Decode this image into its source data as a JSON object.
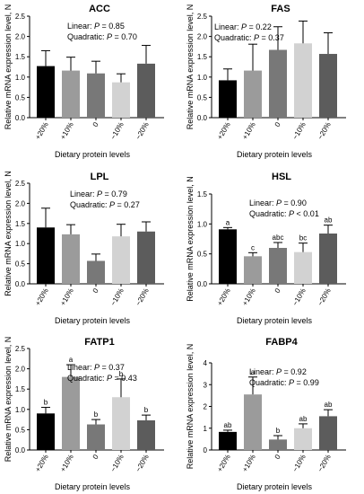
{
  "chart_data": [
    {
      "type": "bar",
      "title": "ACC",
      "stats": [
        "Linear: P = 0.85",
        "Quadratic: P = 0.70"
      ],
      "categories": [
        "+20%",
        "+10%",
        "0",
        "−10%",
        "−20%"
      ],
      "values": [
        1.27,
        1.16,
        1.09,
        0.87,
        1.33
      ],
      "errors": [
        0.38,
        0.33,
        0.3,
        0.21,
        0.45
      ],
      "letters": [],
      "ylim": [
        0,
        2.5
      ],
      "yticks": [
        "0.0",
        "0.5",
        "1.0",
        "1.5",
        "2.0",
        "2.5"
      ],
      "xlabel": "Dietary protein levels",
      "ylabel": "Relative mRNA expression level, N"
    },
    {
      "type": "bar",
      "title": "FAS",
      "stats": [
        "Linear: P = 0.22",
        "Quadratic: P = 0.37"
      ],
      "categories": [
        "+20%",
        "+10%",
        "0",
        "−10%",
        "−20%"
      ],
      "values": [
        0.92,
        1.16,
        1.67,
        1.83,
        1.57
      ],
      "errors": [
        0.28,
        0.65,
        0.57,
        0.55,
        0.52
      ],
      "letters": [],
      "ylim": [
        0,
        2.5
      ],
      "yticks": [
        "0.0",
        "0.5",
        "1.0",
        "1.5",
        "2.0",
        "2.5"
      ],
      "xlabel": "Dietary protein levels",
      "ylabel": "Relative mRNA expression level, N"
    },
    {
      "type": "bar",
      "title": "LPL",
      "stats": [
        "Linear: P = 0.79",
        "Quadratic: P = 0.27"
      ],
      "categories": [
        "+20%",
        "+10%",
        "0",
        "−10%",
        "−20%"
      ],
      "values": [
        1.4,
        1.23,
        0.57,
        1.18,
        1.3
      ],
      "errors": [
        0.48,
        0.24,
        0.17,
        0.3,
        0.24
      ],
      "letters": [],
      "ylim": [
        0,
        2.5
      ],
      "yticks": [
        "0.0",
        "0.5",
        "1.0",
        "1.5",
        "2.0",
        "2.5"
      ],
      "xlabel": "Dietary protein levels",
      "ylabel": "Relative mRNA expression level, N"
    },
    {
      "type": "bar",
      "title": "HSL",
      "stats": [
        "Linear: P = 0.90",
        "Quadratic: P < 0.01"
      ],
      "categories": [
        "+20%",
        "+10%",
        "0",
        "−10%",
        "−20%"
      ],
      "values": [
        0.91,
        0.46,
        0.6,
        0.53,
        0.84
      ],
      "errors": [
        0.03,
        0.06,
        0.09,
        0.15,
        0.14
      ],
      "letters": [
        "a",
        "c",
        "abc",
        "bc",
        "ab"
      ],
      "ylim": [
        0,
        1.5
      ],
      "yticks": [
        "0.0",
        "0.5",
        "1.0",
        "1.5"
      ],
      "xlabel": "Dietary protein levels",
      "ylabel": "Relative mRNA expression level, N"
    },
    {
      "type": "bar",
      "title": "FATP1",
      "stats": [
        "Linear: P = 0.37",
        "Quadratic: P = 0.43"
      ],
      "categories": [
        "+20%",
        "+10%",
        "0",
        "−10%",
        "−20%"
      ],
      "values": [
        0.9,
        1.8,
        0.63,
        1.3,
        0.73
      ],
      "errors": [
        0.15,
        0.3,
        0.12,
        0.45,
        0.13
      ],
      "letters": [
        "b",
        "a",
        "b",
        "b",
        "b"
      ],
      "ylim": [
        0,
        2.5
      ],
      "yticks": [
        "0.0",
        "0.5",
        "1.0",
        "1.5",
        "2.0",
        "2.5"
      ],
      "xlabel": "Dietary protein levels",
      "ylabel": "Relative mRNA expression level, N"
    },
    {
      "type": "bar",
      "title": "FABP4",
      "stats": [
        "Linear: P = 0.92",
        "Quadratic: P = 0.99"
      ],
      "categories": [
        "+20%",
        "+10%",
        "0",
        "−10%",
        "−20%"
      ],
      "values": [
        0.83,
        2.55,
        0.48,
        1.0,
        1.55
      ],
      "errors": [
        0.08,
        0.8,
        0.18,
        0.2,
        0.3
      ],
      "letters": [
        "ab",
        "a",
        "b",
        "ab",
        "ab"
      ],
      "ylim": [
        0,
        4
      ],
      "yticks": [
        "0",
        "1",
        "2",
        "3",
        "4"
      ],
      "xlabel": "Dietary protein levels",
      "ylabel": "Relative mRNA expression level, N"
    }
  ],
  "bar_colors": [
    "#000000",
    "#9b9b9b",
    "#787878",
    "#d2d2d2",
    "#5c5c5c"
  ]
}
